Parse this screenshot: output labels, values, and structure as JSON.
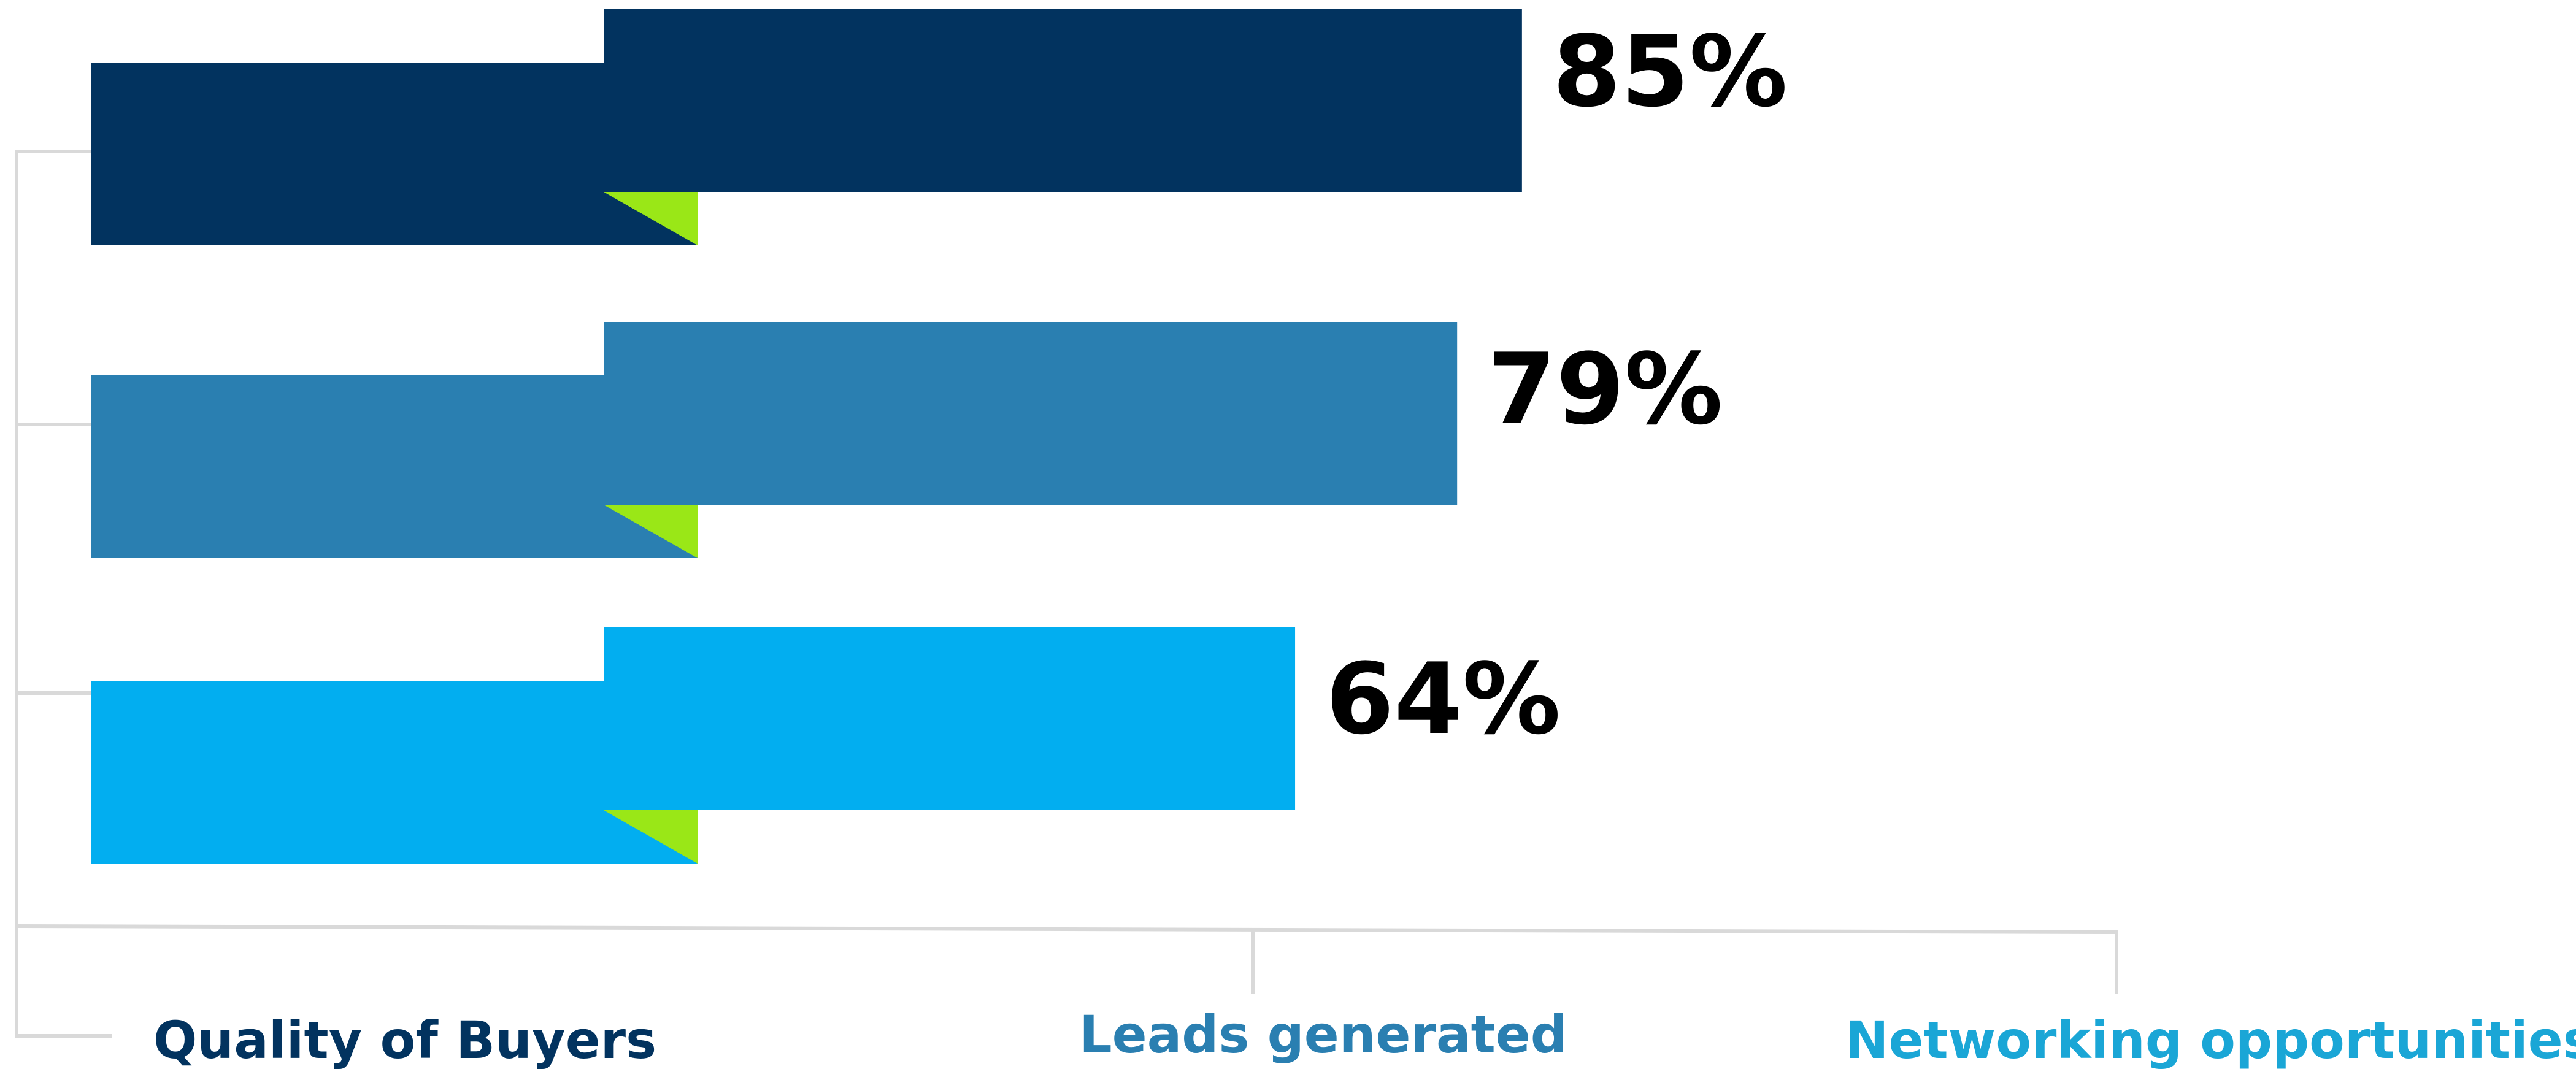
{
  "chart_data": {
    "type": "bar",
    "orientation": "horizontal",
    "categories": [
      "Quality of Buyers",
      "Leads generated",
      "Networking opportunities"
    ],
    "values": [
      85,
      79,
      64
    ],
    "value_labels": [
      "85%",
      "79%",
      "64%"
    ],
    "unit": "%",
    "xlim": [
      0,
      100
    ],
    "colors": [
      "#02335f",
      "#2a7fb1",
      "#02aef0"
    ],
    "label_colors": [
      "#02335f",
      "#2a7fb1",
      "#1aa6d6"
    ],
    "accent_color": "#9ae717",
    "connector_color": "#d9d9d9",
    "grid": false,
    "legend": "none"
  }
}
